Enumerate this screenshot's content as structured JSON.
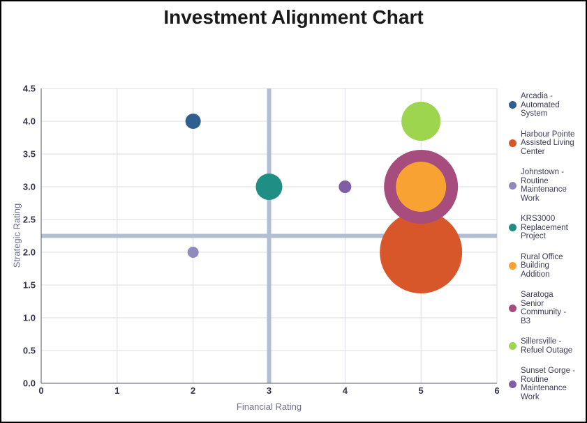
{
  "title": "Investment Alignment Chart",
  "chart_data": {
    "type": "bubble",
    "title": "Investment Alignment Chart",
    "xlabel": "Financial Rating",
    "ylabel": "Strategic Rating",
    "xlim": [
      0,
      6
    ],
    "ylim": [
      0,
      4.5
    ],
    "x_tick_labels": [
      "0",
      "1",
      "2",
      "3",
      "4",
      "5",
      "6"
    ],
    "y_tick_labels": [
      "0.0",
      "0.5",
      "1.0",
      "1.5",
      "2.0",
      "2.5",
      "3.0",
      "3.5",
      "4.0",
      "4.5"
    ],
    "grid": true,
    "legend_position": "right",
    "reference_lines": {
      "x": 3,
      "y": 2.25
    },
    "series": [
      {
        "name": "Arcadia - Automated System",
        "x": 2,
        "y": 4,
        "radius_px": 11,
        "color": "#2e5f8f"
      },
      {
        "name": "Harbour Pointe Assisted Living Center",
        "x": 5,
        "y": 2,
        "radius_px": 59,
        "color": "#d8572a"
      },
      {
        "name": "Johnstown - Routine Maintenance Work",
        "x": 2,
        "y": 2,
        "radius_px": 8,
        "color": "#8f8cbd"
      },
      {
        "name": "KRS3000 Replacement Project",
        "x": 3,
        "y": 3,
        "radius_px": 19,
        "color": "#1f8e85"
      },
      {
        "name": "Rural Office Building Addition",
        "x": 5,
        "y": 3,
        "radius_px": 36,
        "color": "#f7a233"
      },
      {
        "name": "Saratoga Senior Community - B3",
        "x": 5,
        "y": 3,
        "radius_px": 53,
        "color": "#a64d7d"
      },
      {
        "name": "Sillersville - Refuel Outage",
        "x": 5,
        "y": 4,
        "radius_px": 28,
        "color": "#9ed54e"
      },
      {
        "name": "Sunset Gorge - Routine Maintenance Work",
        "x": 4,
        "y": 3,
        "radius_px": 9,
        "color": "#7e5fa6"
      }
    ]
  },
  "legend": {
    "items": [
      {
        "color": "#2e5f8f",
        "lines": [
          "Arcadia -",
          "Automated",
          "System"
        ]
      },
      {
        "color": "#d8572a",
        "lines": [
          "Harbour Pointe",
          "Assisted Living",
          "Center"
        ]
      },
      {
        "color": "#8f8cbd",
        "lines": [
          "Johnstown -",
          "Routine",
          "Maintenance",
          "Work"
        ]
      },
      {
        "color": "#1f8e85",
        "lines": [
          "KRS3000",
          "Replacement",
          "Project"
        ]
      },
      {
        "color": "#f7a233",
        "lines": [
          "Rural Office",
          "Building",
          "Addition"
        ]
      },
      {
        "color": "#a64d7d",
        "lines": [
          "Saratoga",
          "Senior",
          "Community -",
          "B3"
        ]
      },
      {
        "color": "#9ed54e",
        "lines": [
          "Sillersville -",
          "Refuel Outage"
        ]
      },
      {
        "color": "#7e5fa6",
        "lines": [
          "Sunset Gorge -",
          "Routine",
          "Maintenance",
          "Work"
        ]
      }
    ]
  },
  "colors": {
    "crosshair": "#b1bfd5",
    "gridline": "#dcdce3",
    "axis_line": "#54546a",
    "tick_label": "#33334d",
    "axis_title": "#6e6e90",
    "legend_text": "#3c3c57",
    "title": "#1a1a1a",
    "background": "#ffffff",
    "frame_border": "#000000"
  }
}
